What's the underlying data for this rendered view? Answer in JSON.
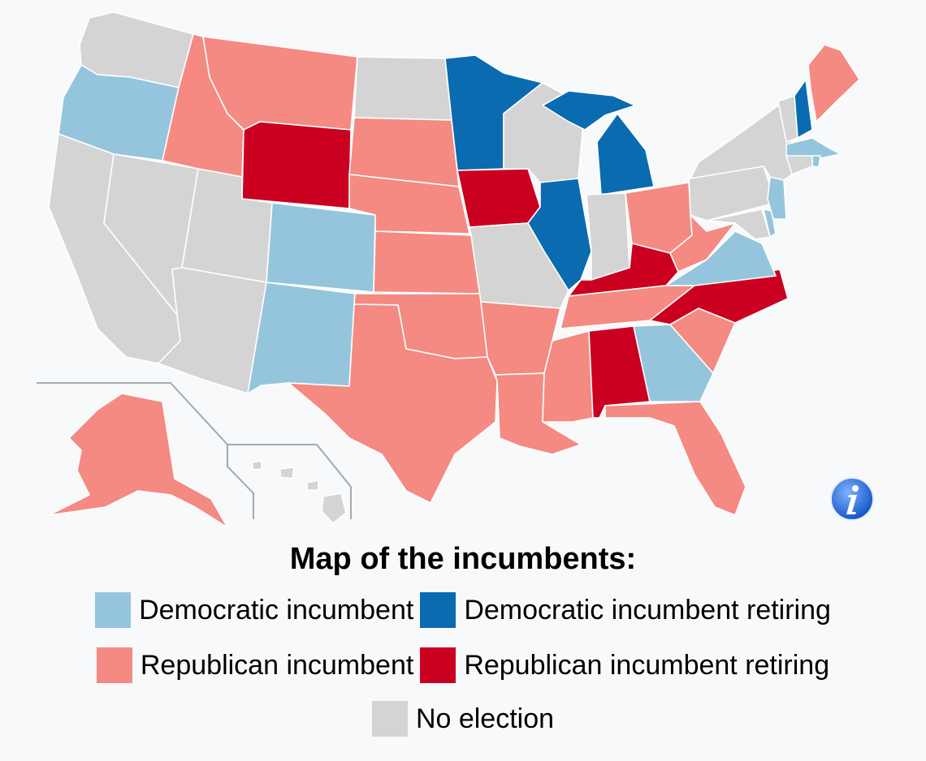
{
  "map": {
    "title": "Map of the incumbents:",
    "colors": {
      "dem_incumbent": "#95c5dd",
      "dem_retiring": "#0a6bb0",
      "rep_incumbent": "#f48a82",
      "rep_retiring": "#cb0021",
      "no_election": "#d4d4d4"
    },
    "legend": [
      {
        "key": "dem_incumbent",
        "label": "Democratic incumbent"
      },
      {
        "key": "dem_retiring",
        "label": "Democratic incumbent retiring"
      },
      {
        "key": "rep_incumbent",
        "label": "Republican incumbent"
      },
      {
        "key": "rep_retiring",
        "label": "Republican incumbent retiring"
      },
      {
        "key": "no_election",
        "label": "No election"
      }
    ],
    "states": {
      "WA": "no_election",
      "OR": "dem_incumbent",
      "CA": "no_election",
      "NV": "no_election",
      "ID": "rep_incumbent",
      "MT": "rep_incumbent",
      "WY": "rep_retiring",
      "UT": "no_election",
      "AZ": "no_election",
      "CO": "dem_incumbent",
      "NM": "dem_incumbent",
      "ND": "no_election",
      "SD": "rep_incumbent",
      "NE": "rep_incumbent",
      "KS": "rep_incumbent",
      "OK": "rep_incumbent",
      "TX": "rep_incumbent",
      "MN": "dem_retiring",
      "IA": "rep_retiring",
      "MO": "no_election",
      "AR": "rep_incumbent",
      "LA": "rep_incumbent",
      "WI": "no_election",
      "IL": "dem_retiring",
      "MI": "dem_retiring",
      "IN": "no_election",
      "OH": "rep_incumbent",
      "KY": "rep_retiring",
      "TN": "rep_incumbent",
      "MS": "rep_incumbent",
      "AL": "rep_retiring",
      "GA": "dem_incumbent",
      "FL": "rep_incumbent",
      "SC": "rep_incumbent",
      "NC": "rep_retiring",
      "VA": "dem_incumbent",
      "WV": "rep_incumbent",
      "PA": "no_election",
      "NY": "no_election",
      "VT": "no_election",
      "NH": "dem_retiring",
      "ME": "rep_incumbent",
      "MA": "dem_incumbent",
      "RI": "dem_incumbent",
      "CT": "no_election",
      "NJ": "dem_incumbent",
      "DE": "dem_incumbent",
      "MD": "no_election",
      "AK": "rep_incumbent",
      "HI": "no_election"
    },
    "info_icon": "info-icon"
  }
}
